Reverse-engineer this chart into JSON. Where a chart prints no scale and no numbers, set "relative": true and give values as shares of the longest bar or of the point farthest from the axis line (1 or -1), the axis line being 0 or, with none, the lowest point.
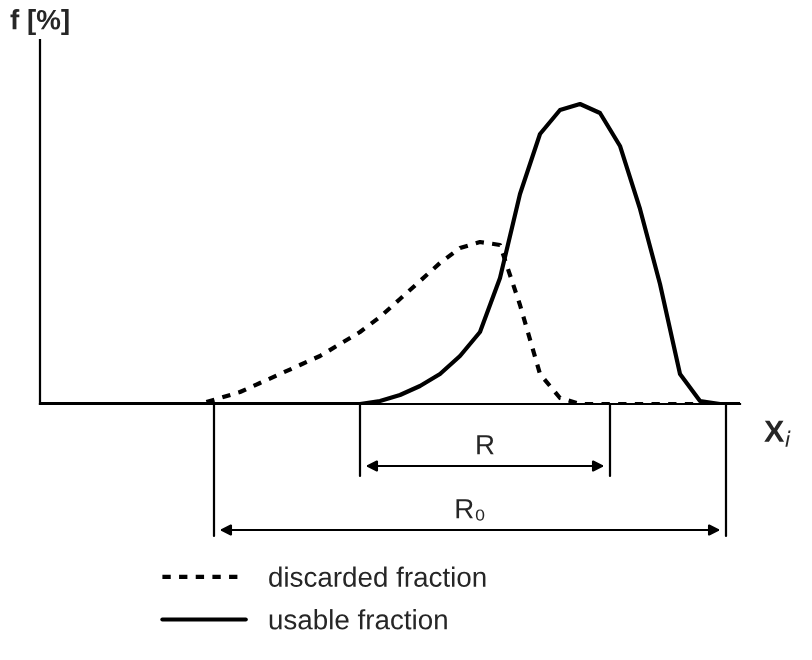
{
  "chart_data": {
    "type": "line",
    "relative": true,
    "ylabel": "f [%]",
    "xlabel": "X$_{i}$",
    "categories": [
      null,
      null,
      null,
      null,
      null,
      null,
      null,
      null,
      null,
      null,
      null,
      null,
      null,
      null,
      null,
      null,
      null,
      null,
      null,
      null,
      null,
      null,
      null,
      null,
      null,
      null,
      null,
      null,
      null,
      null,
      null,
      null,
      null,
      null,
      null,
      null
    ],
    "series": [
      {
        "name": "discarded fraction",
        "color": "#000000",
        "line_style": "dotted",
        "values": [
          0,
          0,
          0,
          0,
          0,
          0,
          0,
          0,
          0,
          0.02,
          0.04,
          0.07,
          0.1,
          0.13,
          0.16,
          0.2,
          0.24,
          0.29,
          0.35,
          0.41,
          0.47,
          0.52,
          0.54,
          0.53,
          0.33,
          0.1,
          0.02,
          0,
          0,
          0,
          0,
          0,
          0,
          0,
          0,
          0
        ]
      },
      {
        "name": "usable fraction",
        "color": "#000000",
        "line_style": "solid",
        "values": [
          0,
          0,
          0,
          0,
          0,
          0,
          0,
          0,
          0,
          0,
          0,
          0,
          0,
          0,
          0,
          0,
          0,
          0.01,
          0.03,
          0.06,
          0.1,
          0.16,
          0.24,
          0.42,
          0.7,
          0.9,
          0.98,
          1.0,
          0.97,
          0.86,
          0.65,
          0.4,
          0.1,
          0.01,
          0,
          0
        ]
      }
    ],
    "annotations": [
      "R",
      "R₀"
    ],
    "legend": "bottom"
  }
}
